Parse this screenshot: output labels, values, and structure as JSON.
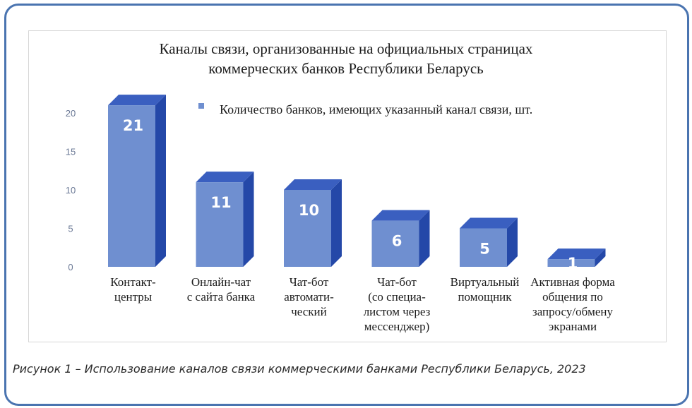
{
  "caption": "Рисунок 1 – Использование каналов связи коммерческими банками Республики Беларусь, 2023",
  "chart_data": {
    "type": "bar",
    "title_lines": [
      "Каналы связи, организованные на официальных страницах",
      "коммерческих банков Республики Беларусь"
    ],
    "legend_position": "top-right",
    "series": [
      {
        "name": "Количество банков, имеющих указанный канал связи, шт.",
        "values": [
          21,
          11,
          10,
          6,
          5,
          1
        ]
      }
    ],
    "categories": [
      [
        "Контакт-",
        "центры"
      ],
      [
        "Онлайн-чат",
        "с сайта банка"
      ],
      [
        "Чат-бот",
        "автомати-",
        "ческий"
      ],
      [
        "Чат-бот",
        "(со специа-",
        "листом через",
        "мессенджер)"
      ],
      [
        "Виртуальный",
        "помощник"
      ],
      [
        "Активная форма",
        "общения по",
        "запросу/обмену",
        "экранами"
      ]
    ],
    "y_ticks": [
      0,
      5,
      10,
      15,
      20
    ],
    "ylim": [
      0,
      21
    ],
    "grid": false,
    "colors": {
      "front": "#6f8fd0",
      "side": "#2448a8",
      "top": "#3a5fc0",
      "label": "#ffffff",
      "axis_text": "#6a7895"
    }
  }
}
